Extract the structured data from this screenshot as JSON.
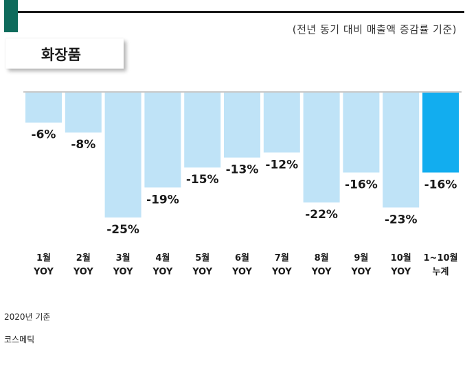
{
  "subtitle": "(전년 동기 대비 매출액 증감률 기준)",
  "colors": {
    "accent": "#0f6b5c",
    "bar_light": "#bfe3f7",
    "bar_highlight": "#12adef"
  },
  "chart_data": {
    "type": "bar",
    "title": "화장품",
    "categories": [
      "1월 YOY",
      "2월 YOY",
      "3월 YOY",
      "4월 YOY",
      "5월 YOY",
      "6월 YOY",
      "7월 YOY",
      "8월 YOY",
      "9월 YOY",
      "10월 YOY",
      "1~10월 누계"
    ],
    "category_lines": [
      [
        "1월",
        "YOY"
      ],
      [
        "2월",
        "YOY"
      ],
      [
        "3월",
        "YOY"
      ],
      [
        "4월",
        "YOY"
      ],
      [
        "5월",
        "YOY"
      ],
      [
        "6월",
        "YOY"
      ],
      [
        "7월",
        "YOY"
      ],
      [
        "8월",
        "YOY"
      ],
      [
        "9월",
        "YOY"
      ],
      [
        "10월",
        "YOY"
      ],
      [
        "1~10월",
        "누계"
      ]
    ],
    "values": [
      -6,
      -8,
      -25,
      -19,
      -15,
      -13,
      -12,
      -22,
      -16,
      -23,
      -16
    ],
    "labels": [
      "-6%",
      "-8%",
      "-25%",
      "-19%",
      "-15%",
      "-13%",
      "-12%",
      "-22%",
      "-16%",
      "-23%",
      "-16%"
    ],
    "highlight_index": 10,
    "ylim": [
      -25,
      0
    ],
    "xlabel": "",
    "ylabel": "",
    "grid": false
  },
  "footnotes": {
    "basis": "2020년 기준",
    "source": "코스메틱"
  }
}
